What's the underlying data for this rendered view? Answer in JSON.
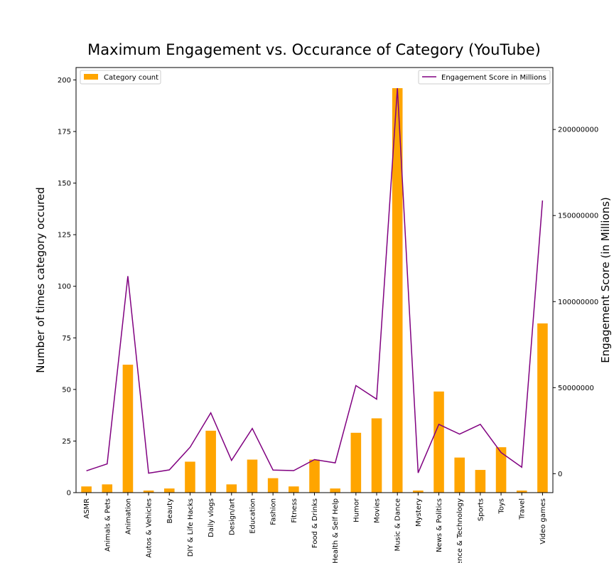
{
  "chart_data": {
    "type": "bar",
    "title": "Maximum Engagement vs. Occurance of Category (YouTube)",
    "categories": [
      "ASMR",
      "Animals & Pets",
      "Animation",
      "Autos & Vehicles",
      "Beauty",
      "DIY & Life Hacks",
      "Daily vlogs",
      "Design/art",
      "Education",
      "Fashion",
      "Fitness",
      "Food & Drinks",
      "Health & Self Help",
      "Humor",
      "Movies",
      "Music & Dance",
      "Mystery",
      "News & Politics",
      "Science & Technology",
      "Sports",
      "Toys",
      "Travel",
      "Video games"
    ],
    "ylabel": "Number of times category occured",
    "y2label": "Engagement Score (in Millions)",
    "ylim": [
      0,
      206
    ],
    "y2lim": [
      -11000000,
      236000000
    ],
    "yticks": [
      0,
      25,
      50,
      75,
      100,
      125,
      150,
      175,
      200
    ],
    "y2ticks": [
      0,
      50000000,
      100000000,
      150000000,
      200000000
    ],
    "series": [
      {
        "name": "Category count",
        "type": "bar",
        "axis": "left",
        "color": "#FFA500",
        "values": [
          3,
          4,
          62,
          1,
          2,
          15,
          30,
          4,
          16,
          7,
          3,
          16,
          2,
          29,
          36,
          196,
          1,
          49,
          17,
          11,
          22,
          1,
          82
        ]
      },
      {
        "name": "Engagement Score in Millions",
        "type": "line",
        "axis": "right",
        "color": "#800080",
        "values": [
          1700000,
          5700000,
          114800000,
          300000,
          2200000,
          15400000,
          35400000,
          7700000,
          26300000,
          2100000,
          1800000,
          8200000,
          6300000,
          51200000,
          43300000,
          224000000,
          500000,
          28700000,
          23000000,
          28700000,
          12300000,
          3800000,
          158700000
        ]
      }
    ],
    "legend": [
      "top-left",
      "top-right"
    ],
    "grid": false
  }
}
